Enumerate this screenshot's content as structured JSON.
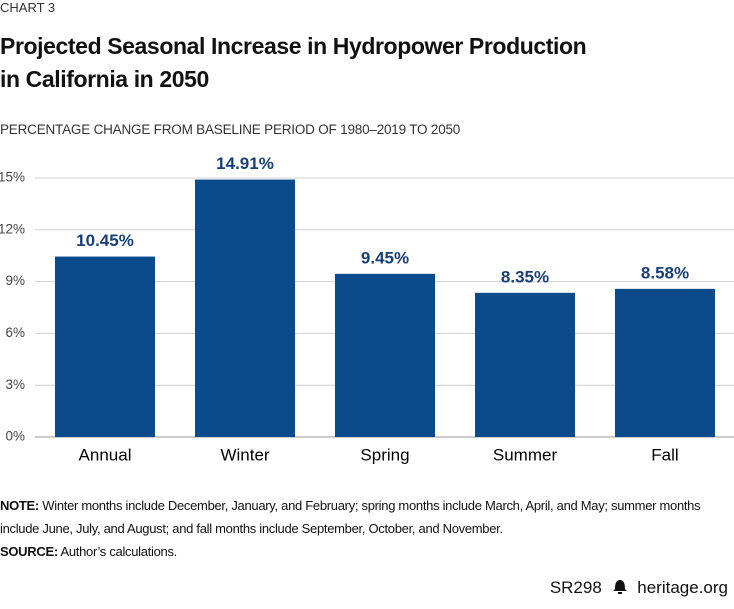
{
  "chart_data": {
    "type": "bar",
    "chart_number": "CHART 3",
    "title": [
      "Projected Seasonal Increase in Hydropower Production",
      "in California in 2050"
    ],
    "subtitle": "PERCENTAGE CHANGE FROM BASELINE PERIOD OF 1980–2019 TO 2050",
    "categories": [
      "Annual",
      "Winter",
      "Spring",
      "Summer",
      "Fall"
    ],
    "values": [
      10.45,
      14.91,
      9.45,
      8.35,
      8.58
    ],
    "value_labels": [
      "10.45%",
      "14.91%",
      "9.45%",
      "8.35%",
      "8.58%"
    ],
    "color": "#0b4a8b",
    "ylim": [
      0,
      15
    ],
    "yticks": [
      {
        "value": 0,
        "label": "0%"
      },
      {
        "value": 3,
        "label": "3%"
      },
      {
        "value": 6,
        "label": "6%"
      },
      {
        "value": 9,
        "label": "9%"
      },
      {
        "value": 12,
        "label": "12%"
      },
      {
        "value": 15,
        "label": "15%"
      }
    ],
    "grid": true
  },
  "notes": {
    "note_label": "NOTE:",
    "note_text": "Winter months include December, January, and February; spring months include March, April, and May; summer months include June, July, and August; and fall months include September, October, and November.",
    "source_label": "SOURCE:",
    "source_text": "Author’s calculations."
  },
  "footer": {
    "report": "SR298",
    "site": "heritage.org"
  }
}
